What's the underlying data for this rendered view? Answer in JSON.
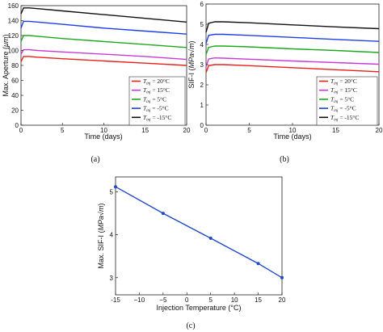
{
  "colors": {
    "red": "#e8201e",
    "magenta": "#c93bd8",
    "green": "#1fa81f",
    "blue": "#1f3fe6",
    "black": "#111111",
    "line_c": "#2248c8"
  },
  "captions": [
    "(a)",
    "(b)",
    "(c)"
  ],
  "chart_data": [
    {
      "type": "line",
      "xlabel": "Time (days)",
      "ylabel_text": "Max. Aperture (",
      "ylabel_unit": "μm",
      "ylabel_close": ")",
      "xlim": [
        0,
        20
      ],
      "ylim": [
        0,
        160
      ],
      "xticks": [
        "0",
        "5",
        "10",
        "15",
        "20"
      ],
      "yticks": [
        "0",
        "20",
        "40",
        "60",
        "80",
        "100",
        "120",
        "140",
        "160"
      ],
      "legend_position": "bottom-right",
      "grid": false,
      "x": [
        0,
        0.3,
        1,
        2,
        5,
        10,
        15,
        20
      ],
      "series": [
        {
          "name": "T_inj = 20°C",
          "legend_var": "T",
          "legend_sub": "inj",
          "legend_val": " = 20°C",
          "color": "red",
          "y": [
            85,
            92,
            92,
            91,
            89,
            86,
            83,
            80
          ]
        },
        {
          "name": "T_inj = 15°C",
          "legend_var": "T",
          "legend_sub": "inj",
          "legend_val": " = 15°C",
          "color": "magenta",
          "y": [
            95,
            101,
            101,
            100,
            98,
            95,
            92,
            88
          ]
        },
        {
          "name": "T_inj = 5°C",
          "legend_var": "T",
          "legend_sub": "inj",
          "legend_val": " = 5°C",
          "color": "green",
          "y": [
            112,
            120,
            120,
            119,
            116,
            112,
            108,
            104
          ]
        },
        {
          "name": "T_inj = -5°C",
          "legend_var": "T",
          "legend_sub": "inj",
          "legend_val": " = -5°C",
          "color": "blue",
          "y": [
            130,
            139,
            139,
            138,
            135,
            130,
            126,
            122
          ]
        },
        {
          "name": "T_inj = -15°C",
          "legend_var": "T",
          "legend_sub": "inj",
          "legend_val": " = -15°C",
          "color": "black",
          "y": [
            149,
            157,
            157,
            156,
            153,
            148,
            143,
            138
          ]
        }
      ]
    },
    {
      "type": "line",
      "xlabel": "Time (days)",
      "ylabel_text": "SIF-I (",
      "ylabel_unit": "MPa√m",
      "ylabel_close": ")",
      "xlim": [
        0,
        20
      ],
      "ylim": [
        0,
        6
      ],
      "xticks": [
        "0",
        "5",
        "10",
        "15",
        "20"
      ],
      "yticks": [
        "0",
        "1",
        "2",
        "3",
        "4",
        "5",
        "6"
      ],
      "legend_position": "bottom-right",
      "grid": false,
      "x": [
        0,
        0.3,
        1,
        2,
        5,
        10,
        15,
        20
      ],
      "series": [
        {
          "name": "T_inj = 20°C",
          "legend_var": "T",
          "legend_sub": "inj",
          "legend_val": " = 20°C",
          "color": "red",
          "y": [
            2.6,
            2.95,
            3.0,
            3.0,
            2.95,
            2.85,
            2.75,
            2.65
          ]
        },
        {
          "name": "T_inj = 15°C",
          "legend_var": "T",
          "legend_sub": "inj",
          "legend_val": " = 15°C",
          "color": "magenta",
          "y": [
            2.9,
            3.28,
            3.33,
            3.32,
            3.27,
            3.18,
            3.1,
            3.02
          ]
        },
        {
          "name": "T_inj = 5°C",
          "legend_var": "T",
          "legend_sub": "inj",
          "legend_val": " = 5°C",
          "color": "green",
          "y": [
            3.5,
            3.85,
            3.92,
            3.92,
            3.88,
            3.78,
            3.7,
            3.6
          ]
        },
        {
          "name": "T_inj = -5°C",
          "legend_var": "T",
          "legend_sub": "inj",
          "legend_val": " = -5°C",
          "color": "blue",
          "y": [
            4.05,
            4.45,
            4.5,
            4.5,
            4.45,
            4.35,
            4.25,
            4.15
          ]
        },
        {
          "name": "T_inj = -15°C",
          "legend_var": "T",
          "legend_sub": "inj",
          "legend_val": " = -15°C",
          "color": "black",
          "y": [
            4.6,
            5.05,
            5.12,
            5.12,
            5.07,
            4.97,
            4.87,
            4.78
          ]
        }
      ]
    },
    {
      "type": "line",
      "xlabel": "Injection Temperature (°C)",
      "ylabel_text": "Max. SIF-I (",
      "ylabel_unit": "MPa√m",
      "ylabel_close": ")",
      "xlim": [
        -15,
        20
      ],
      "ylim": [
        2.6,
        5.35
      ],
      "xticks": [
        "-15",
        "−10",
        "−5",
        "0",
        "5",
        "10",
        "15",
        "20"
      ],
      "yticks": [
        "3",
        "4",
        "5"
      ],
      "grid": false,
      "x": [
        -15,
        -5,
        5,
        15,
        20
      ],
      "y": [
        5.12,
        4.5,
        3.92,
        3.33,
        3.0
      ],
      "color": "line_c"
    }
  ]
}
